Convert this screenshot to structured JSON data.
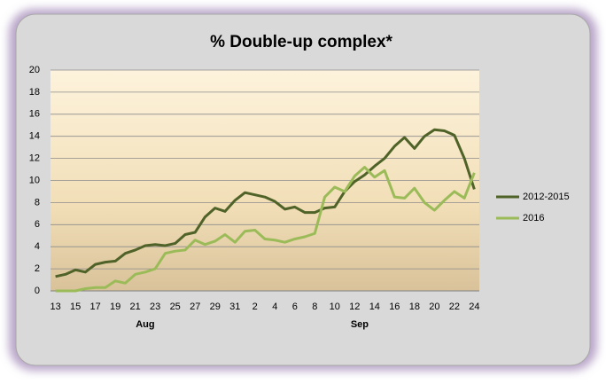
{
  "chart_data": {
    "type": "line",
    "title": "% Double-up complex*",
    "categories": [
      "13",
      null,
      "15",
      null,
      "17",
      null,
      "19",
      null,
      "21",
      null,
      "23",
      null,
      "25",
      null,
      "27",
      null,
      "29",
      null,
      "31",
      null,
      "2",
      null,
      "4",
      null,
      "6",
      null,
      "8",
      null,
      "10",
      null,
      "12",
      null,
      "14",
      null,
      "16",
      null,
      "18",
      null,
      "20",
      null,
      "22",
      null,
      "24"
    ],
    "groups": [
      {
        "label": "Aug",
        "count": 19
      },
      {
        "label": "Sep",
        "count": 24
      }
    ],
    "series": [
      {
        "name": "2012-2015",
        "color": "#4f6228",
        "values": [
          1.3,
          1.5,
          1.9,
          1.7,
          2.4,
          2.6,
          2.7,
          3.4,
          3.7,
          4.1,
          4.2,
          4.1,
          4.3,
          5.1,
          5.3,
          6.7,
          7.5,
          7.2,
          8.2,
          8.9,
          8.7,
          8.5,
          8.1,
          7.4,
          7.6,
          7.1,
          7.1,
          7.5,
          7.6,
          9.0,
          9.9,
          10.5,
          11.3,
          12.0,
          13.1,
          13.9,
          12.9,
          14.0,
          14.6,
          14.5,
          14.1,
          12.0,
          9.2
        ]
      },
      {
        "name": "2016",
        "color": "#9bbb59",
        "values": [
          0,
          0,
          0,
          0.2,
          0.3,
          0.3,
          0.9,
          0.7,
          1.5,
          1.7,
          2.0,
          3.4,
          3.6,
          3.7,
          4.6,
          4.2,
          4.5,
          5.1,
          4.4,
          5.4,
          5.5,
          4.7,
          4.6,
          4.4,
          4.7,
          4.9,
          5.2,
          8.5,
          9.4,
          9.0,
          10.4,
          11.2,
          10.3,
          10.9,
          8.5,
          8.4,
          9.3,
          8.0,
          7.3,
          8.2,
          9.0,
          8.4,
          10.7
        ]
      }
    ],
    "ylim": [
      0,
      20
    ],
    "yticks": [
      0,
      2,
      4,
      6,
      8,
      10,
      12,
      14,
      16,
      18,
      20
    ],
    "grid": true,
    "legend": "right"
  }
}
